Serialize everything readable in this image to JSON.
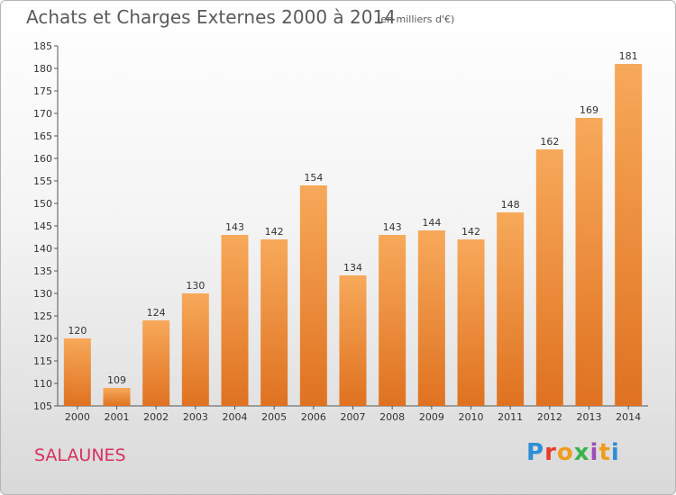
{
  "header": {
    "title": "Achats et Charges Externes 2000 à 2014",
    "subtitle": "(en milliers d'€)"
  },
  "footer": {
    "town": "SALAUNES",
    "logo_text": "Proxiti"
  },
  "colors": {
    "bar_light": "#f7a95a",
    "bar_dark": "#df7220",
    "title": "#5a5a5a",
    "town": "#d8305f"
  },
  "chart_data": {
    "type": "bar",
    "title": "Achats et Charges Externes 2000 à 2014",
    "subtitle": "(en milliers d'€)",
    "categories": [
      "2000",
      "2001",
      "2002",
      "2003",
      "2004",
      "2005",
      "2006",
      "2007",
      "2008",
      "2009",
      "2010",
      "2011",
      "2012",
      "2013",
      "2014"
    ],
    "values": [
      120,
      109,
      124,
      130,
      143,
      142,
      154,
      134,
      143,
      144,
      142,
      148,
      162,
      169,
      181
    ],
    "ylim": [
      105,
      185
    ],
    "yticks": [
      105,
      110,
      115,
      120,
      125,
      130,
      135,
      140,
      145,
      150,
      155,
      160,
      165,
      170,
      175,
      180,
      185
    ],
    "grid": false,
    "data_labels": true
  }
}
